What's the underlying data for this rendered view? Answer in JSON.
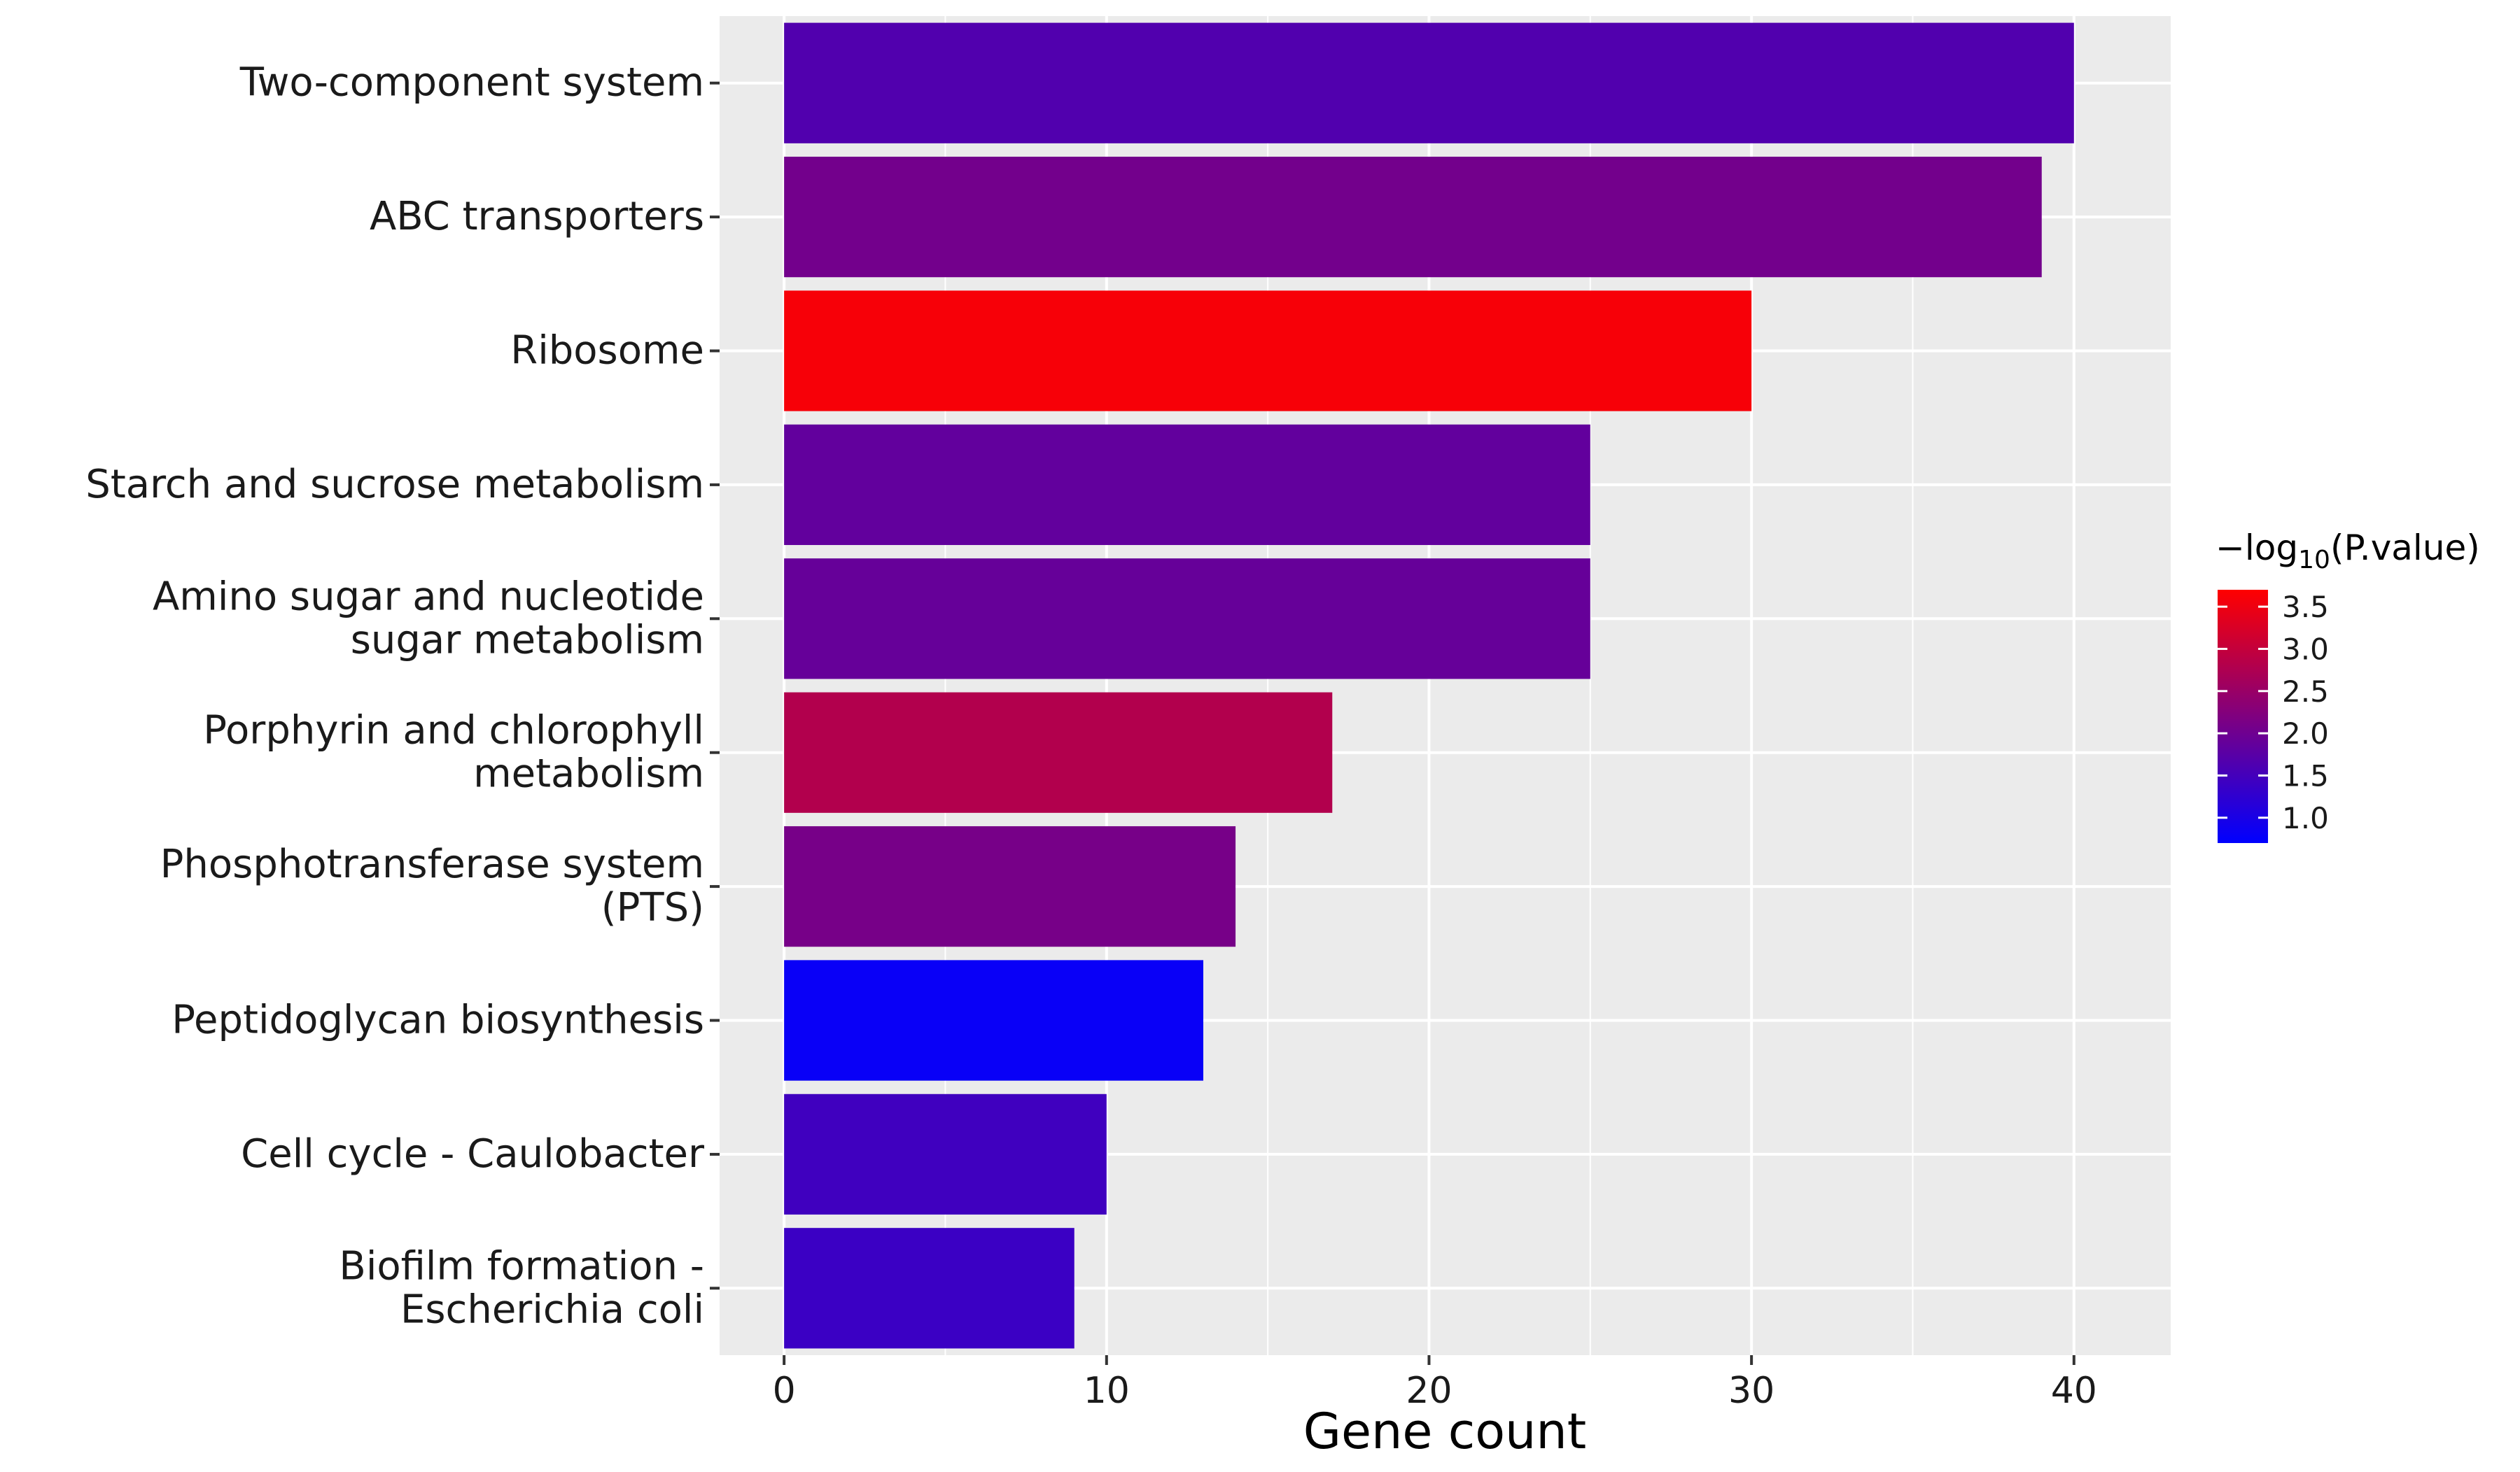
{
  "chart_data": {
    "type": "bar",
    "orientation": "horizontal",
    "categories": [
      [
        "Two-component system"
      ],
      [
        "ABC transporters"
      ],
      [
        "Ribosome"
      ],
      [
        "Starch and sucrose metabolism"
      ],
      [
        "Amino sugar and nucleotide",
        "sugar metabolism"
      ],
      [
        "Porphyrin and chlorophyll",
        "metabolism"
      ],
      [
        "Phosphotransferase system",
        "(PTS)"
      ],
      [
        "Peptidoglycan biosynthesis"
      ],
      [
        "Cell cycle - Caulobacter"
      ],
      [
        "Biofilm formation -",
        "Escherichia coli"
      ]
    ],
    "values": [
      40,
      39,
      30,
      25,
      25,
      17,
      14,
      13,
      10,
      9
    ],
    "neg_log10_pvalue": [
      1.65,
      2.05,
      3.6,
      1.85,
      1.9,
      2.8,
      2.1,
      0.8,
      1.45,
      1.4
    ],
    "xlabel": "Gene count",
    "ylabel": "",
    "xlim": [
      -2,
      43
    ],
    "x_ticks": [
      "0",
      "10",
      "20",
      "30",
      "40"
    ],
    "x_tick_values": [
      0,
      10,
      20,
      30,
      40
    ],
    "grid": true,
    "legend": {
      "title_prefix": "−log",
      "title_subscript": "10",
      "title_suffix": "(P.value)",
      "position": "right",
      "range": [
        0.7,
        3.7
      ],
      "ticks": [
        "3.5",
        "3.0",
        "2.5",
        "2.0",
        "1.5",
        "1.0"
      ],
      "tick_values": [
        3.5,
        3.0,
        2.5,
        2.0,
        1.5,
        1.0
      ],
      "low_color": "#0000ff",
      "high_color": "#ff0000"
    },
    "panel_background": "#ebebeb",
    "grid_color": "#ffffff"
  }
}
